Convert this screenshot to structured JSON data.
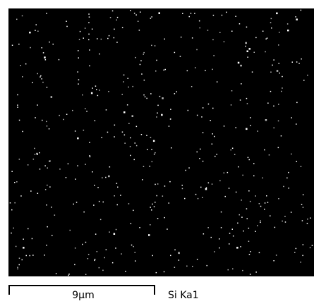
{
  "image": {
    "scale_bar_label": "9µm",
    "element_label": "Si Ka1"
  }
}
